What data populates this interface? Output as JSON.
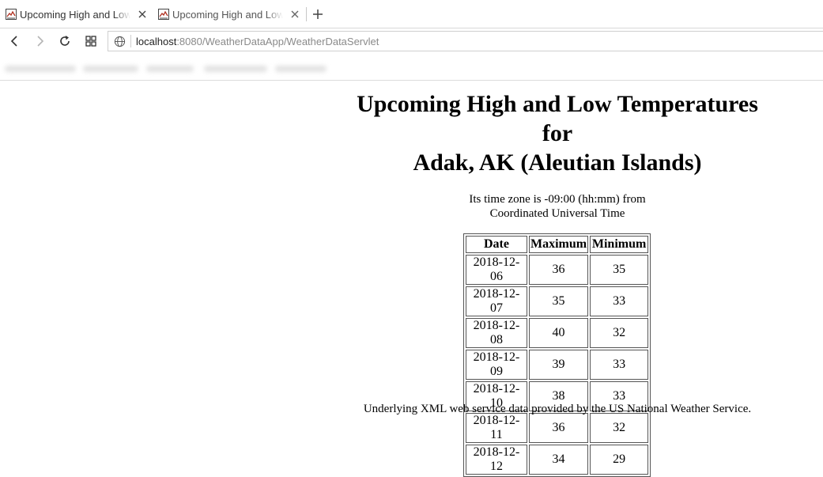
{
  "browser": {
    "tabs": [
      {
        "title": "Upcoming High and Low Temperatures",
        "active": true
      },
      {
        "title": "Upcoming High and Low Temperatures",
        "active": false
      }
    ],
    "url": {
      "host": "localhost",
      "rest": ":8080/WeatherDataApp/WeatherDataServlet"
    }
  },
  "page": {
    "heading_line1": "Upcoming High and Low Temperatures",
    "heading_line2": "for",
    "heading_line3": "Adak, AK (Aleutian Islands)",
    "timezone_line1": "Its time zone is -09:00 (hh:mm) from",
    "timezone_line2": "Coordinated Universal Time",
    "table": {
      "headers": [
        "Date",
        "Maximum",
        "Minimum"
      ],
      "rows": [
        [
          "2018-12-06",
          "36",
          "35"
        ],
        [
          "2018-12-07",
          "35",
          "33"
        ],
        [
          "2018-12-08",
          "40",
          "32"
        ],
        [
          "2018-12-09",
          "39",
          "33"
        ],
        [
          "2018-12-10",
          "38",
          "33"
        ],
        [
          "2018-12-11",
          "36",
          "32"
        ],
        [
          "2018-12-12",
          "34",
          "29"
        ]
      ]
    },
    "footer": "Underlying XML web service data provided by the US National Weather Service."
  },
  "icons": {
    "tab_favicon": "weather-map-icon",
    "tab_close": "close-icon",
    "new_tab": "plus-icon",
    "back": "back-arrow-icon",
    "forward": "forward-arrow-icon",
    "reload": "reload-icon",
    "speed_dial": "grid-icon",
    "site_info": "globe-icon"
  }
}
